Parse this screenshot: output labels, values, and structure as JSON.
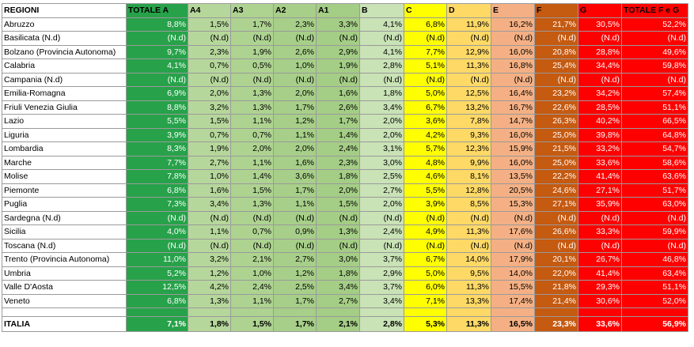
{
  "colors": {
    "header_bg": "#ffffff",
    "region_bg": "#ffffff",
    "columns": [
      "#27a24a",
      "#b6d79b",
      "#aed391",
      "#a7cf89",
      "#a4cd85",
      "#c9e2b6",
      "#ffff00",
      "#ffd966",
      "#f4b084",
      "#c55a11",
      "#ff0000",
      "#ff0000"
    ],
    "text_on_dark": [
      "#ffffff",
      null,
      null,
      null,
      null,
      null,
      null,
      null,
      null,
      "#ffffff",
      "#ffffff",
      "#ffffff"
    ]
  },
  "table": {
    "header_region": "REGIONI",
    "columns": [
      "TOTALE A",
      "A4",
      "A3",
      "A2",
      "A1",
      "B",
      "C",
      "D",
      "E",
      "F",
      "G",
      "TOTALE F e G"
    ],
    "rows": [
      {
        "region": "Abruzzo",
        "values": [
          "8,8%",
          "1,5%",
          "1,7%",
          "2,3%",
          "3,3%",
          "4,1%",
          "6,8%",
          "11,9%",
          "16,2%",
          "21,7%",
          "30,5%",
          "52,2%"
        ]
      },
      {
        "region": "Basilicata (N.d)",
        "values": [
          "(N.d)",
          "(N.d)",
          "(N.d)",
          "(N.d)",
          "(N.d)",
          "(N.d)",
          "(N.d)",
          "(N.d)",
          "(N.d)",
          "(N.d)",
          "(N.d)",
          "(N.d)"
        ]
      },
      {
        "region": "Bolzano (Provincia Autonoma)",
        "values": [
          "9,7%",
          "2,3%",
          "1,9%",
          "2,6%",
          "2,9%",
          "4,1%",
          "7,7%",
          "12,9%",
          "16,0%",
          "20,8%",
          "28,8%",
          "49,6%"
        ]
      },
      {
        "region": "Calabria",
        "values": [
          "4,1%",
          "0,7%",
          "0,5%",
          "1,0%",
          "1,9%",
          "2,8%",
          "5,1%",
          "11,3%",
          "16,8%",
          "25,4%",
          "34,4%",
          "59,8%"
        ]
      },
      {
        "region": "Campania (N.d)",
        "values": [
          "(N.d)",
          "(N.d)",
          "(N.d)",
          "(N.d)",
          "(N.d)",
          "(N.d)",
          "(N.d)",
          "(N.d)",
          "(N.d)",
          "(N.d)",
          "(N.d)",
          "(N.d)"
        ]
      },
      {
        "region": "Emilia-Romagna",
        "values": [
          "6,9%",
          "2,0%",
          "1,3%",
          "2,0%",
          "1,6%",
          "1,8%",
          "5,0%",
          "12,5%",
          "16,4%",
          "23,2%",
          "34,2%",
          "57,4%"
        ]
      },
      {
        "region": "Friuli Venezia Giulia",
        "values": [
          "8,8%",
          "3,2%",
          "1,3%",
          "1,7%",
          "2,6%",
          "3,4%",
          "6,7%",
          "13,2%",
          "16,7%",
          "22,6%",
          "28,5%",
          "51,1%"
        ]
      },
      {
        "region": "Lazio",
        "values": [
          "5,5%",
          "1,5%",
          "1,1%",
          "1,2%",
          "1,7%",
          "2,0%",
          "3,6%",
          "7,8%",
          "14,7%",
          "26,3%",
          "40,2%",
          "66,5%"
        ]
      },
      {
        "region": "Liguria",
        "values": [
          "3,9%",
          "0,7%",
          "0,7%",
          "1,1%",
          "1,4%",
          "2,0%",
          "4,2%",
          "9,3%",
          "16,0%",
          "25,0%",
          "39,8%",
          "64,8%"
        ]
      },
      {
        "region": "Lombardia",
        "values": [
          "8,3%",
          "1,9%",
          "2,0%",
          "2,0%",
          "2,4%",
          "3,1%",
          "5,7%",
          "12,3%",
          "15,9%",
          "21,5%",
          "33,2%",
          "54,7%"
        ]
      },
      {
        "region": "Marche",
        "values": [
          "7,7%",
          "2,7%",
          "1,1%",
          "1,6%",
          "2,3%",
          "3,0%",
          "4,8%",
          "9,9%",
          "16,0%",
          "25,0%",
          "33,6%",
          "58,6%"
        ]
      },
      {
        "region": "Molise",
        "values": [
          "7,8%",
          "1,0%",
          "1,4%",
          "3,6%",
          "1,8%",
          "2,5%",
          "4,6%",
          "8,1%",
          "13,5%",
          "22,2%",
          "41,4%",
          "63,6%"
        ]
      },
      {
        "region": "Piemonte",
        "values": [
          "6,8%",
          "1,6%",
          "1,5%",
          "1,7%",
          "2,0%",
          "2,7%",
          "5,5%",
          "12,8%",
          "20,5%",
          "24,6%",
          "27,1%",
          "51,7%"
        ]
      },
      {
        "region": "Puglia",
        "values": [
          "7,3%",
          "3,4%",
          "1,3%",
          "1,1%",
          "1,5%",
          "2,0%",
          "3,9%",
          "8,5%",
          "15,3%",
          "27,1%",
          "35,9%",
          "63,0%"
        ]
      },
      {
        "region": "Sardegna (N.d)",
        "values": [
          "(N.d)",
          "(N.d)",
          "(N.d)",
          "(N.d)",
          "(N.d)",
          "(N.d)",
          "(N.d)",
          "(N.d)",
          "(N.d)",
          "(N.d)",
          "(N.d)",
          "(N.d)"
        ]
      },
      {
        "region": "Sicilia",
        "values": [
          "4,0%",
          "1,1%",
          "0,7%",
          "0,9%",
          "1,3%",
          "2,4%",
          "4,9%",
          "11,3%",
          "17,6%",
          "26,6%",
          "33,3%",
          "59,9%"
        ]
      },
      {
        "region": "Toscana (N.d)",
        "values": [
          "(N.d)",
          "(N.d)",
          "(N.d)",
          "(N.d)",
          "(N.d)",
          "(N.d)",
          "(N.d)",
          "(N.d)",
          "(N.d)",
          "(N.d)",
          "(N.d)",
          "(N.d)"
        ]
      },
      {
        "region": "Trento (Provincia Autonoma)",
        "values": [
          "11,0%",
          "3,2%",
          "2,1%",
          "2,7%",
          "3,0%",
          "3,7%",
          "6,7%",
          "14,0%",
          "17,9%",
          "20,1%",
          "26,7%",
          "46,8%"
        ]
      },
      {
        "region": "Umbria",
        "values": [
          "5,2%",
          "1,2%",
          "1,0%",
          "1,2%",
          "1,8%",
          "2,9%",
          "5,0%",
          "9,5%",
          "14,0%",
          "22,0%",
          "41,4%",
          "63,4%"
        ]
      },
      {
        "region": "Valle D'Aosta",
        "values": [
          "12,5%",
          "4,2%",
          "2,4%",
          "2,5%",
          "3,4%",
          "3,7%",
          "6,0%",
          "11,3%",
          "15,5%",
          "21,8%",
          "29,3%",
          "51,1%"
        ]
      },
      {
        "region": "Veneto",
        "values": [
          "6,8%",
          "1,3%",
          "1,1%",
          "1,7%",
          "2,7%",
          "3,4%",
          "7,1%",
          "13,3%",
          "17,4%",
          "21,4%",
          "30,6%",
          "52,0%"
        ]
      }
    ],
    "total": {
      "region": "ITALIA",
      "values": [
        "7,1%",
        "1,8%",
        "1,5%",
        "1,7%",
        "2,1%",
        "2,8%",
        "5,3%",
        "11,3%",
        "16,5%",
        "23,3%",
        "33,6%",
        "56,9%"
      ]
    }
  }
}
